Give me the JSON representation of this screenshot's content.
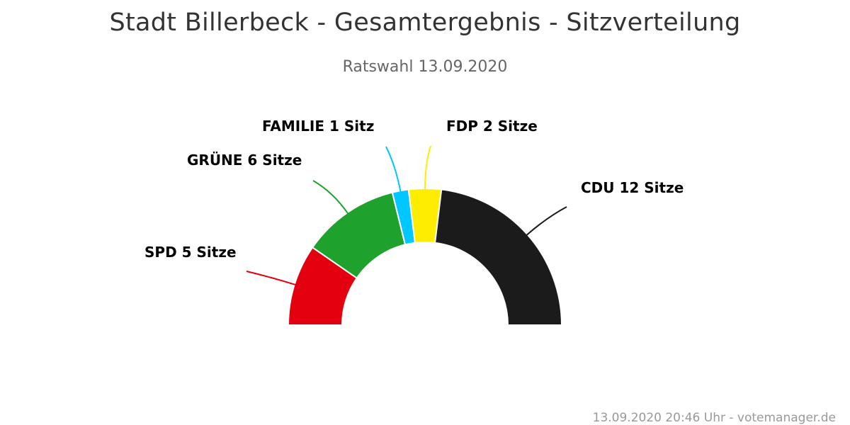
{
  "title": "Stadt Billerbeck - Gesamtergebnis - Sitzverteilung",
  "subtitle": "Ratswahl 13.09.2020",
  "credits": "13.09.2020 20:46 Uhr - votemanager.de",
  "chart_data": {
    "type": "pie",
    "variant": "semicircle-parliament",
    "title": "Stadt Billerbeck - Gesamtergebnis - Sitzverteilung",
    "subtitle": "Ratswahl 13.09.2020",
    "unit": "Sitze",
    "total": 26,
    "slices": [
      {
        "name": "SPD",
        "value": 5,
        "label": "SPD 5 Sitze",
        "color": "#e3000f"
      },
      {
        "name": "GRÜNE",
        "value": 6,
        "label": "GRÜNE 6 Sitze",
        "color": "#1fa12e"
      },
      {
        "name": "FAMILIE",
        "value": 1,
        "label": "FAMILIE 1 Sitz",
        "color": "#00c8ff"
      },
      {
        "name": "FDP",
        "value": 2,
        "label": "FDP 2 Sitze",
        "color": "#ffed00"
      },
      {
        "name": "CDU",
        "value": 12,
        "label": "CDU 12 Sitze",
        "color": "#1b1b1b"
      }
    ]
  }
}
